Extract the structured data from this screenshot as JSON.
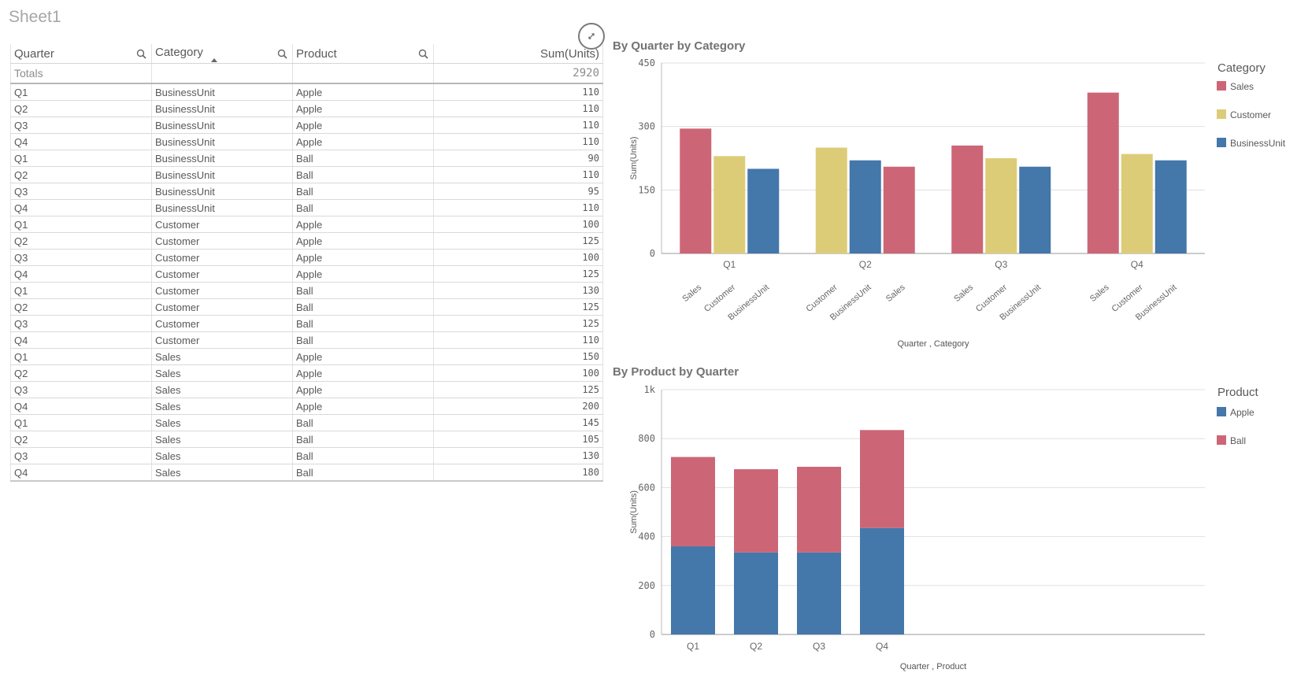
{
  "sheet": {
    "title": "Sheet1"
  },
  "table": {
    "columns": [
      "Quarter",
      "Category",
      "Product",
      "Sum(Units)"
    ],
    "totals_label": "Totals",
    "totals_value": "2920",
    "rows": [
      [
        "Q1",
        "BusinessUnit",
        "Apple",
        "110"
      ],
      [
        "Q2",
        "BusinessUnit",
        "Apple",
        "110"
      ],
      [
        "Q3",
        "BusinessUnit",
        "Apple",
        "110"
      ],
      [
        "Q4",
        "BusinessUnit",
        "Apple",
        "110"
      ],
      [
        "Q1",
        "BusinessUnit",
        "Ball",
        "90"
      ],
      [
        "Q2",
        "BusinessUnit",
        "Ball",
        "110"
      ],
      [
        "Q3",
        "BusinessUnit",
        "Ball",
        "95"
      ],
      [
        "Q4",
        "BusinessUnit",
        "Ball",
        "110"
      ],
      [
        "Q1",
        "Customer",
        "Apple",
        "100"
      ],
      [
        "Q2",
        "Customer",
        "Apple",
        "125"
      ],
      [
        "Q3",
        "Customer",
        "Apple",
        "100"
      ],
      [
        "Q4",
        "Customer",
        "Apple",
        "125"
      ],
      [
        "Q1",
        "Customer",
        "Ball",
        "130"
      ],
      [
        "Q2",
        "Customer",
        "Ball",
        "125"
      ],
      [
        "Q3",
        "Customer",
        "Ball",
        "125"
      ],
      [
        "Q4",
        "Customer",
        "Ball",
        "110"
      ],
      [
        "Q1",
        "Sales",
        "Apple",
        "150"
      ],
      [
        "Q2",
        "Sales",
        "Apple",
        "100"
      ],
      [
        "Q3",
        "Sales",
        "Apple",
        "125"
      ],
      [
        "Q4",
        "Sales",
        "Apple",
        "200"
      ],
      [
        "Q1",
        "Sales",
        "Ball",
        "145"
      ],
      [
        "Q2",
        "Sales",
        "Ball",
        "105"
      ],
      [
        "Q3",
        "Sales",
        "Ball",
        "130"
      ],
      [
        "Q4",
        "Sales",
        "Ball",
        "180"
      ]
    ]
  },
  "colors": {
    "Sales": "#cc6677",
    "Customer": "#ddcc77",
    "BusinessUnit": "#4477aa",
    "Apple": "#4477aa",
    "Ball": "#cc6677"
  },
  "chart_data": [
    {
      "type": "bar",
      "title": "By Quarter by Category",
      "xlabel": "Quarter , Category",
      "ylabel": "Sum(Units)",
      "ylim": [
        0,
        450
      ],
      "yticks": [
        "0",
        "150",
        "300",
        "450"
      ],
      "legend_title": "Category",
      "legend": [
        "Sales",
        "Customer",
        "BusinessUnit"
      ],
      "legend_position": "right",
      "grid": true,
      "groups": [
        {
          "quarter": "Q1",
          "bars": [
            {
              "category": "Sales",
              "value": 295
            },
            {
              "category": "Customer",
              "value": 230
            },
            {
              "category": "BusinessUnit",
              "value": 200
            }
          ]
        },
        {
          "quarter": "Q2",
          "bars": [
            {
              "category": "Customer",
              "value": 250
            },
            {
              "category": "BusinessUnit",
              "value": 220
            },
            {
              "category": "Sales",
              "value": 205
            }
          ]
        },
        {
          "quarter": "Q3",
          "bars": [
            {
              "category": "Sales",
              "value": 255
            },
            {
              "category": "Customer",
              "value": 225
            },
            {
              "category": "BusinessUnit",
              "value": 205
            }
          ]
        },
        {
          "quarter": "Q4",
          "bars": [
            {
              "category": "Sales",
              "value": 380
            },
            {
              "category": "Customer",
              "value": 235
            },
            {
              "category": "BusinessUnit",
              "value": 220
            }
          ]
        }
      ]
    },
    {
      "type": "bar",
      "stacked": true,
      "title": "By Product by Quarter",
      "xlabel": "Quarter , Product",
      "ylabel": "Sum(Units)",
      "ylim": [
        0,
        1000
      ],
      "yticks": [
        "0",
        "200",
        "400",
        "600",
        "800",
        "1k"
      ],
      "legend_title": "Product",
      "legend": [
        "Apple",
        "Ball"
      ],
      "legend_position": "right",
      "grid": true,
      "categories": [
        "Q1",
        "Q2",
        "Q3",
        "Q4"
      ],
      "series": [
        {
          "name": "Apple",
          "values": [
            360,
            335,
            335,
            435
          ]
        },
        {
          "name": "Ball",
          "values": [
            365,
            340,
            350,
            400
          ]
        }
      ]
    }
  ]
}
